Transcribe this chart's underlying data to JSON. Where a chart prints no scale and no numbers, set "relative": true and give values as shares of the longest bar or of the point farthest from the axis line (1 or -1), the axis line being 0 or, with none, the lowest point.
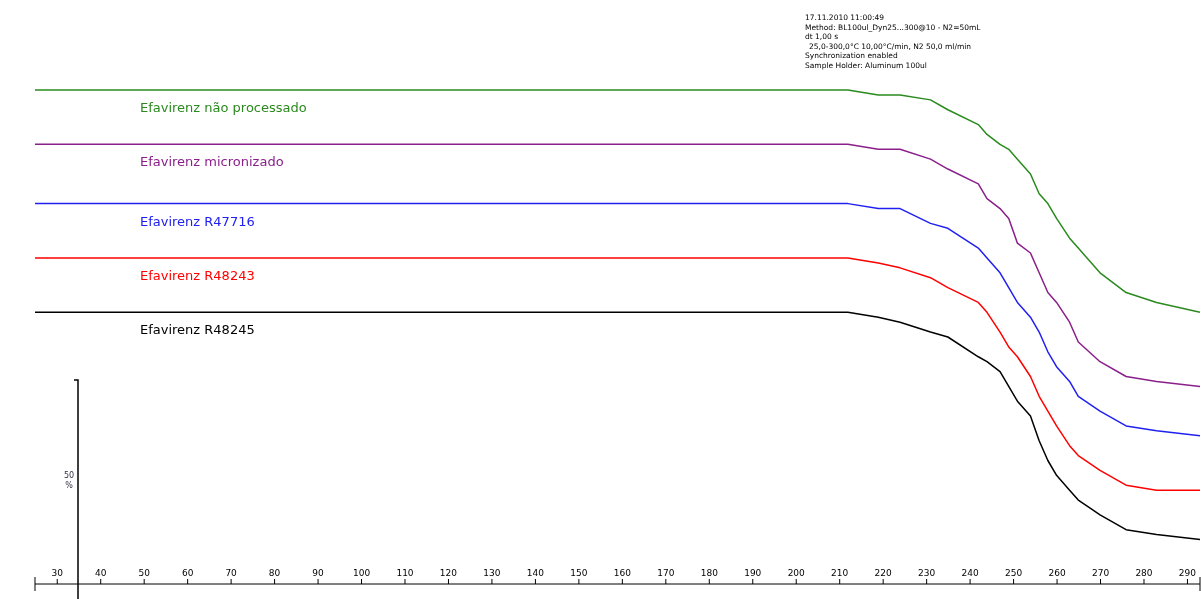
{
  "chart_data": {
    "type": "line",
    "relative": true,
    "legend": false,
    "grid": false,
    "tick_labels": "x",
    "line_style": "solid",
    "marker": "none",
    "x": [
      25,
      198,
      203,
      209,
      212,
      219,
      224,
      231,
      235,
      242,
      244,
      247,
      249,
      251,
      254,
      256,
      258,
      260,
      263,
      265,
      270,
      276,
      283,
      293
    ],
    "xlim": [
      25,
      293
    ],
    "xticks": [
      30,
      40,
      50,
      60,
      70,
      80,
      90,
      100,
      110,
      120,
      130,
      140,
      150,
      160,
      170,
      180,
      190,
      200,
      210,
      220,
      230,
      240,
      250,
      260,
      270,
      280,
      290
    ],
    "series": [
      {
        "name": "Efavirenz não processado",
        "color": "#2a8a1e",
        "values": [
          1,
          1,
          1,
          1,
          1,
          0.99,
          0.99,
          0.98,
          0.96,
          0.93,
          0.91,
          0.89,
          0.88,
          0.86,
          0.83,
          0.79,
          0.77,
          0.74,
          0.7,
          0.68,
          0.63,
          0.59,
          0.57,
          0.55
        ]
      },
      {
        "name": "Efavirenz micronizado",
        "color": "#8a1f8a",
        "values": [
          0.89,
          0.89,
          0.89,
          0.89,
          0.89,
          0.88,
          0.88,
          0.86,
          0.84,
          0.81,
          0.78,
          0.76,
          0.74,
          0.69,
          0.67,
          0.63,
          0.59,
          0.57,
          0.53,
          0.49,
          0.45,
          0.42,
          0.41,
          0.4
        ]
      },
      {
        "name": "Efavirenz R47716",
        "color": "#2020f0",
        "values": [
          0.77,
          0.77,
          0.77,
          0.77,
          0.77,
          0.76,
          0.76,
          0.73,
          0.72,
          0.68,
          0.66,
          0.63,
          0.6,
          0.57,
          0.54,
          0.51,
          0.47,
          0.44,
          0.41,
          0.38,
          0.35,
          0.32,
          0.31,
          0.3
        ]
      },
      {
        "name": "Efavirenz R48243",
        "color": "#ff0000",
        "values": [
          0.66,
          0.66,
          0.66,
          0.66,
          0.66,
          0.65,
          0.64,
          0.62,
          0.6,
          0.57,
          0.55,
          0.51,
          0.48,
          0.46,
          0.42,
          0.38,
          0.35,
          0.32,
          0.28,
          0.26,
          0.23,
          0.2,
          0.19,
          0.19
        ]
      },
      {
        "name": "Efavirenz R48245",
        "color": "#000000",
        "values": [
          0.55,
          0.55,
          0.55,
          0.55,
          0.55,
          0.54,
          0.53,
          0.51,
          0.5,
          0.46,
          0.45,
          0.43,
          0.4,
          0.37,
          0.34,
          0.29,
          0.25,
          0.22,
          0.19,
          0.17,
          0.14,
          0.11,
          0.1,
          0.09
        ]
      }
    ],
    "annotations": [
      "17.11.2010 11:00:49",
      "Method: BL100ul_Dyn25...300@10 - N2=50mL",
      "dt 1,00 s",
      "25,0-300,0°C 10,00°C/min, N2 50,0 ml/min",
      "Synchronization enabled",
      "Sample Holder: Aluminum 100ul",
      "50 %"
    ]
  }
}
